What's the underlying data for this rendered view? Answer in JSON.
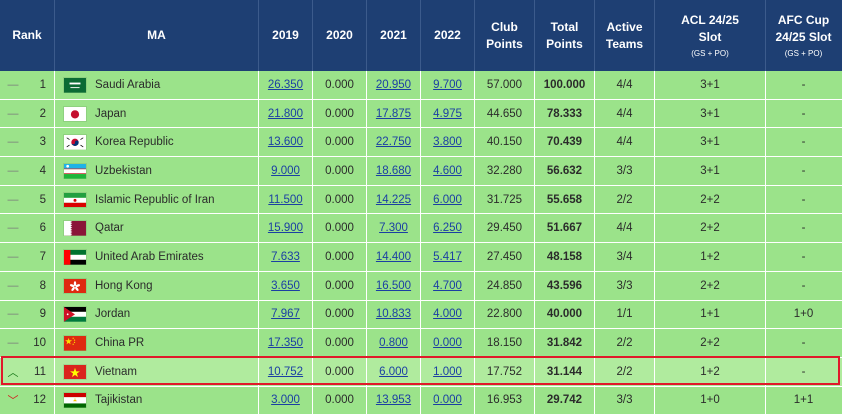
{
  "header": {
    "rank": "Rank",
    "ma": "MA",
    "y2019": "2019",
    "y2020": "2020",
    "y2021": "2021",
    "y2022": "2022",
    "club_points": "Club Points",
    "total_points": "Total Points",
    "active_teams": "Active Teams",
    "acl": "ACL 24/25 Slot",
    "acl_sub": "(GS + PO)",
    "afc": "AFC Cup 24/25 Slot",
    "afc_sub": "(GS + PO)"
  },
  "rows": [
    {
      "trend": "—",
      "trend_type": "same",
      "rank": "1",
      "flag": "sa-flag-icon",
      "name": "Saudi Arabia",
      "y2019": "26.350",
      "y2020": "0.000",
      "y2021": "20.950",
      "y2022": "9.700",
      "club": "57.000",
      "total": "100.000",
      "teams": "4/4",
      "acl": "3+1",
      "afc": "-"
    },
    {
      "trend": "—",
      "trend_type": "same",
      "rank": "2",
      "flag": "jp-flag-icon",
      "name": "Japan",
      "y2019": "21.800",
      "y2020": "0.000",
      "y2021": "17.875",
      "y2022": "4.975",
      "club": "44.650",
      "total": "78.333",
      "teams": "4/4",
      "acl": "3+1",
      "afc": "-"
    },
    {
      "trend": "—",
      "trend_type": "same",
      "rank": "3",
      "flag": "kr-flag-icon",
      "name": "Korea Republic",
      "y2019": "13.600",
      "y2020": "0.000",
      "y2021": "22.750",
      "y2022": "3.800",
      "club": "40.150",
      "total": "70.439",
      "teams": "4/4",
      "acl": "3+1",
      "afc": "-"
    },
    {
      "trend": "—",
      "trend_type": "same",
      "rank": "4",
      "flag": "uz-flag-icon",
      "name": "Uzbekistan",
      "y2019": "9.000",
      "y2020": "0.000",
      "y2021": "18.680",
      "y2022": "4.600",
      "club": "32.280",
      "total": "56.632",
      "teams": "3/3",
      "acl": "3+1",
      "afc": "-"
    },
    {
      "trend": "—",
      "trend_type": "same",
      "rank": "5",
      "flag": "ir-flag-icon",
      "name": "Islamic Republic of Iran",
      "y2019": "11.500",
      "y2020": "0.000",
      "y2021": "14.225",
      "y2022": "6.000",
      "club": "31.725",
      "total": "55.658",
      "teams": "2/2",
      "acl": "2+2",
      "afc": "-"
    },
    {
      "trend": "—",
      "trend_type": "same",
      "rank": "6",
      "flag": "qa-flag-icon",
      "name": "Qatar",
      "y2019": "15.900",
      "y2020": "0.000",
      "y2021": "7.300",
      "y2022": "6.250",
      "club": "29.450",
      "total": "51.667",
      "teams": "4/4",
      "acl": "2+2",
      "afc": "-"
    },
    {
      "trend": "—",
      "trend_type": "same",
      "rank": "7",
      "flag": "ae-flag-icon",
      "name": "United Arab Emirates",
      "y2019": "7.633",
      "y2020": "0.000",
      "y2021": "14.400",
      "y2022": "5.417",
      "club": "27.450",
      "total": "48.158",
      "teams": "3/4",
      "acl": "1+2",
      "afc": "-"
    },
    {
      "trend": "—",
      "trend_type": "same",
      "rank": "8",
      "flag": "hk-flag-icon",
      "name": "Hong Kong",
      "y2019": "3.650",
      "y2020": "0.000",
      "y2021": "16.500",
      "y2022": "4.700",
      "club": "24.850",
      "total": "43.596",
      "teams": "3/3",
      "acl": "2+2",
      "afc": "-"
    },
    {
      "trend": "—",
      "trend_type": "same",
      "rank": "9",
      "flag": "jo-flag-icon",
      "name": "Jordan",
      "y2019": "7.967",
      "y2020": "0.000",
      "y2021": "10.833",
      "y2022": "4.000",
      "club": "22.800",
      "total": "40.000",
      "teams": "1/1",
      "acl": "1+1",
      "afc": "1+0"
    },
    {
      "trend": "—",
      "trend_type": "same",
      "rank": "10",
      "flag": "cn-flag-icon",
      "name": "China PR",
      "y2019": "17.350",
      "y2020": "0.000",
      "y2021": "0.800",
      "y2022": "0.000",
      "club": "18.150",
      "total": "31.842",
      "teams": "2/2",
      "acl": "2+2",
      "afc": "-"
    },
    {
      "trend": "^",
      "trend_type": "up",
      "rank": "11",
      "flag": "vn-flag-icon",
      "name": "Vietnam",
      "y2019": "10.752",
      "y2020": "0.000",
      "y2021": "6.000",
      "y2022": "1.000",
      "club": "17.752",
      "total": "31.144",
      "teams": "2/2",
      "acl": "1+2",
      "afc": "-"
    },
    {
      "trend": "v",
      "trend_type": "down",
      "rank": "12",
      "flag": "tj-flag-icon",
      "name": "Tajikistan",
      "y2019": "3.000",
      "y2020": "0.000",
      "y2021": "13.953",
      "y2022": "0.000",
      "club": "16.953",
      "total": "29.742",
      "teams": "3/3",
      "acl": "1+0",
      "afc": "1+1"
    }
  ],
  "highlight_color": "#e0192a",
  "header_color": "#1e3f73",
  "row_color": "#9be38a"
}
